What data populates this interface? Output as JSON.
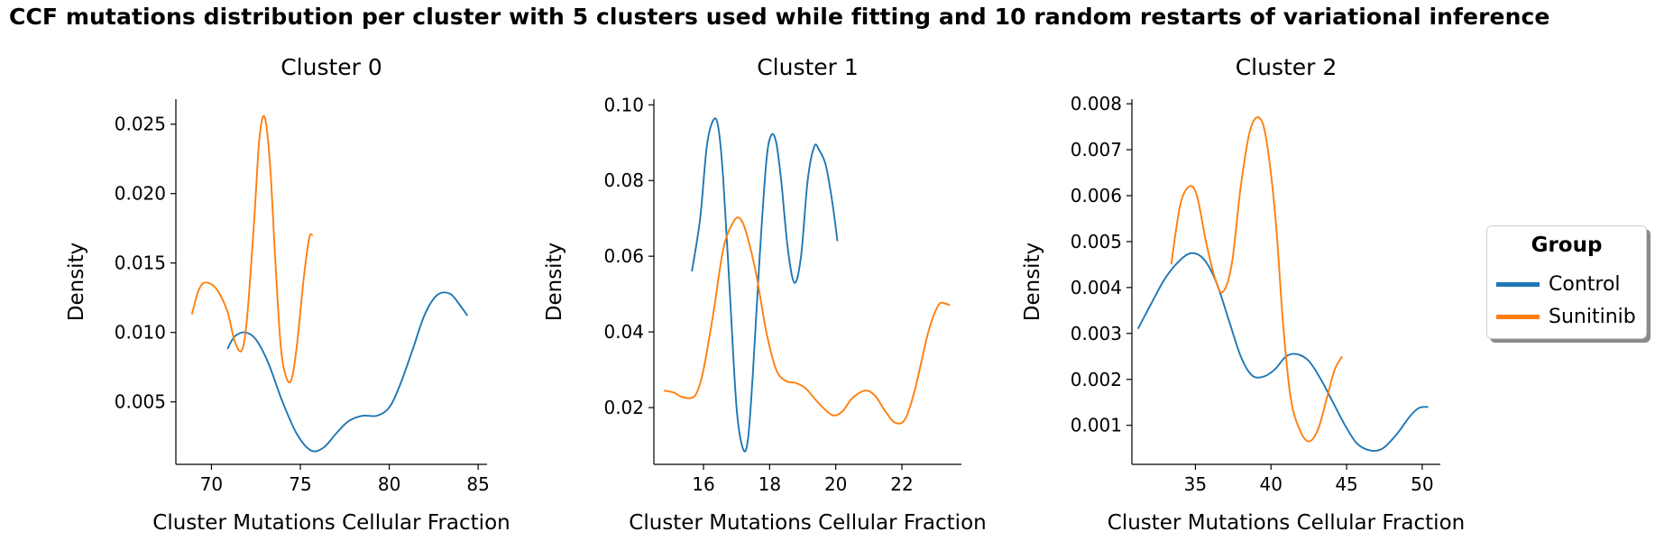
{
  "figure_title": "CCF mutations distribution per cluster with 5 clusters used while fitting and 10 random restarts of variational inference",
  "legend": {
    "title": "Group",
    "items": [
      {
        "label": "Control",
        "color": "#1f77b4"
      },
      {
        "label": "Sunitinib",
        "color": "#ff7f0e"
      }
    ]
  },
  "chart_data": [
    {
      "type": "line",
      "title": "Cluster 0",
      "xlabel": "Cluster Mutations Cellular Fraction",
      "ylabel": "Density",
      "xlim": [
        68,
        85.5
      ],
      "ylim": [
        0.0005,
        0.0268
      ],
      "xticks": [
        70,
        75,
        80,
        85
      ],
      "xtick_labels": [
        "70",
        "75",
        "80",
        "85"
      ],
      "yticks": [
        0.005,
        0.01,
        0.015,
        0.02,
        0.025
      ],
      "ytick_labels": [
        "0.005",
        "0.010",
        "0.015",
        "0.020",
        "0.025"
      ],
      "series": [
        {
          "name": "Control",
          "color": "#1f77b4",
          "x": [
            70.9,
            71.3,
            71.9,
            72.5,
            73.2,
            74.0,
            74.8,
            75.6,
            76.3,
            77.0,
            77.7,
            78.5,
            79.3,
            80.0,
            80.6,
            81.3,
            82.0,
            82.7,
            83.4,
            83.9,
            84.4
          ],
          "y": [
            0.0088,
            0.0097,
            0.01,
            0.0095,
            0.0078,
            0.005,
            0.0027,
            0.0015,
            0.0017,
            0.0027,
            0.0036,
            0.004,
            0.004,
            0.0046,
            0.0062,
            0.0087,
            0.0113,
            0.0127,
            0.0128,
            0.0121,
            0.0112
          ]
        },
        {
          "name": "Sunitinib",
          "color": "#ff7f0e",
          "x": [
            68.9,
            69.3,
            69.7,
            70.3,
            70.9,
            71.3,
            71.7,
            72.0,
            72.4,
            72.7,
            73.0,
            73.3,
            73.6,
            73.9,
            74.2,
            74.5,
            74.8,
            75.2,
            75.5,
            75.7
          ],
          "y": [
            0.0113,
            0.0131,
            0.0136,
            0.0131,
            0.0115,
            0.0094,
            0.0087,
            0.011,
            0.018,
            0.024,
            0.0255,
            0.022,
            0.015,
            0.009,
            0.0068,
            0.0066,
            0.009,
            0.014,
            0.0168,
            0.017
          ]
        }
      ]
    },
    {
      "type": "line",
      "title": "Cluster 1",
      "xlabel": "Cluster Mutations Cellular Fraction",
      "ylabel": "Density",
      "xlim": [
        14.5,
        23.8
      ],
      "ylim": [
        0.005,
        0.1015
      ],
      "xticks": [
        16,
        18,
        20,
        22
      ],
      "xtick_labels": [
        "16",
        "18",
        "20",
        "22"
      ],
      "yticks": [
        0.02,
        0.04,
        0.06,
        0.08,
        0.1
      ],
      "ytick_labels": [
        "0.02",
        "0.04",
        "0.06",
        "0.08",
        "0.10"
      ],
      "series": [
        {
          "name": "Control",
          "color": "#1f77b4",
          "x": [
            15.65,
            15.9,
            16.1,
            16.3,
            16.45,
            16.6,
            16.8,
            17.0,
            17.2,
            17.35,
            17.5,
            17.7,
            17.9,
            18.05,
            18.2,
            18.35,
            18.55,
            18.75,
            18.95,
            19.15,
            19.35,
            19.5,
            19.7,
            19.9,
            20.05
          ],
          "y": [
            0.056,
            0.07,
            0.089,
            0.096,
            0.094,
            0.08,
            0.05,
            0.02,
            0.009,
            0.012,
            0.03,
            0.06,
            0.085,
            0.092,
            0.09,
            0.08,
            0.062,
            0.053,
            0.06,
            0.08,
            0.089,
            0.088,
            0.084,
            0.074,
            0.064
          ]
        },
        {
          "name": "Sunitinib",
          "color": "#ff7f0e",
          "x": [
            14.8,
            15.1,
            15.3,
            15.6,
            15.8,
            16.0,
            16.3,
            16.6,
            16.9,
            17.1,
            17.3,
            17.6,
            17.9,
            18.2,
            18.5,
            18.8,
            19.1,
            19.5,
            19.9,
            20.2,
            20.5,
            20.9,
            21.2,
            21.5,
            21.8,
            22.1,
            22.4,
            22.8,
            23.1,
            23.3,
            23.45
          ],
          "y": [
            0.0245,
            0.024,
            0.023,
            0.0225,
            0.024,
            0.03,
            0.045,
            0.062,
            0.069,
            0.07,
            0.066,
            0.055,
            0.04,
            0.03,
            0.027,
            0.0265,
            0.025,
            0.021,
            0.018,
            0.019,
            0.0225,
            0.0245,
            0.023,
            0.019,
            0.016,
            0.017,
            0.025,
            0.04,
            0.047,
            0.0475,
            0.047
          ]
        }
      ]
    },
    {
      "type": "line",
      "title": "Cluster 2",
      "xlabel": "Cluster Mutations Cellular Fraction",
      "ylabel": "Density",
      "xlim": [
        30.8,
        51.2
      ],
      "ylim": [
        0.00015,
        0.0081
      ],
      "xticks": [
        35,
        40,
        45,
        50
      ],
      "xtick_labels": [
        "35",
        "40",
        "45",
        "50"
      ],
      "yticks": [
        0.001,
        0.002,
        0.003,
        0.004,
        0.005,
        0.006,
        0.007,
        0.008
      ],
      "ytick_labels": [
        "0.001",
        "0.002",
        "0.003",
        "0.004",
        "0.005",
        "0.006",
        "0.007",
        "0.008"
      ],
      "series": [
        {
          "name": "Control",
          "color": "#1f77b4",
          "x": [
            31.2,
            32.0,
            33.0,
            34.0,
            34.8,
            35.6,
            36.4,
            37.2,
            38.0,
            38.7,
            39.4,
            40.2,
            41.0,
            41.7,
            42.5,
            43.3,
            44.1,
            44.9,
            45.7,
            46.6,
            47.4,
            48.3,
            49.2,
            49.8,
            50.4
          ],
          "y": [
            0.0031,
            0.0036,
            0.0042,
            0.0046,
            0.00475,
            0.0046,
            0.0041,
            0.0033,
            0.0025,
            0.0021,
            0.00205,
            0.0022,
            0.0025,
            0.00255,
            0.0024,
            0.002,
            0.0015,
            0.001,
            0.0006,
            0.00045,
            0.0005,
            0.0008,
            0.0012,
            0.00138,
            0.0014
          ]
        },
        {
          "name": "Sunitinib",
          "color": "#ff7f0e",
          "x": [
            33.4,
            34.0,
            34.6,
            35.1,
            35.7,
            36.3,
            36.8,
            37.4,
            38.0,
            38.6,
            39.2,
            39.7,
            40.3,
            40.8,
            41.3,
            41.9,
            42.5,
            43.1,
            43.7,
            44.2,
            44.7
          ],
          "y": [
            0.0045,
            0.0058,
            0.0062,
            0.006,
            0.005,
            0.0042,
            0.0039,
            0.0045,
            0.0062,
            0.0074,
            0.0077,
            0.0072,
            0.0055,
            0.0032,
            0.0016,
            0.0009,
            0.00065,
            0.0009,
            0.0016,
            0.0022,
            0.0025
          ]
        }
      ]
    }
  ]
}
